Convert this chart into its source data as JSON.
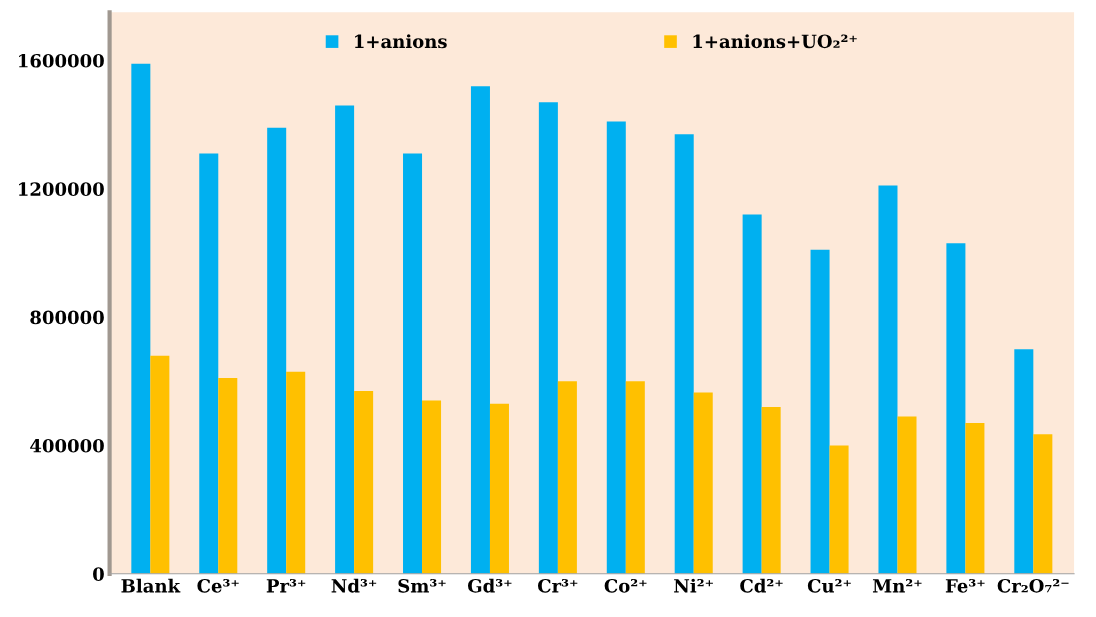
{
  "chart_data": {
    "type": "bar",
    "categories": [
      "Blank",
      "Ce³⁺",
      "Pr³⁺",
      "Nd³⁺",
      "Sm³⁺",
      "Gd³⁺",
      "Cr³⁺",
      "Co²⁺",
      "Ni²⁺",
      "Cd²⁺",
      "Cu²⁺",
      "Mn²⁺",
      "Fe³⁺",
      "Cr₂O₇²⁻"
    ],
    "series": [
      {
        "name": "1+anions",
        "color": "#00b0f0",
        "values": [
          1590000,
          1310000,
          1390000,
          1460000,
          1310000,
          1520000,
          1470000,
          1410000,
          1370000,
          1120000,
          1010000,
          1210000,
          1030000,
          700000
        ]
      },
      {
        "name": "1+anions+UO₂²⁺",
        "color": "#ffc000",
        "values": [
          680000,
          610000,
          630000,
          570000,
          540000,
          530000,
          600000,
          600000,
          565000,
          520000,
          400000,
          490000,
          470000,
          435000
        ]
      }
    ],
    "ylim": [
      0,
      1750000
    ],
    "yticks": [
      0,
      400000,
      800000,
      1200000,
      1600000
    ],
    "grid": false,
    "legend": "top"
  }
}
